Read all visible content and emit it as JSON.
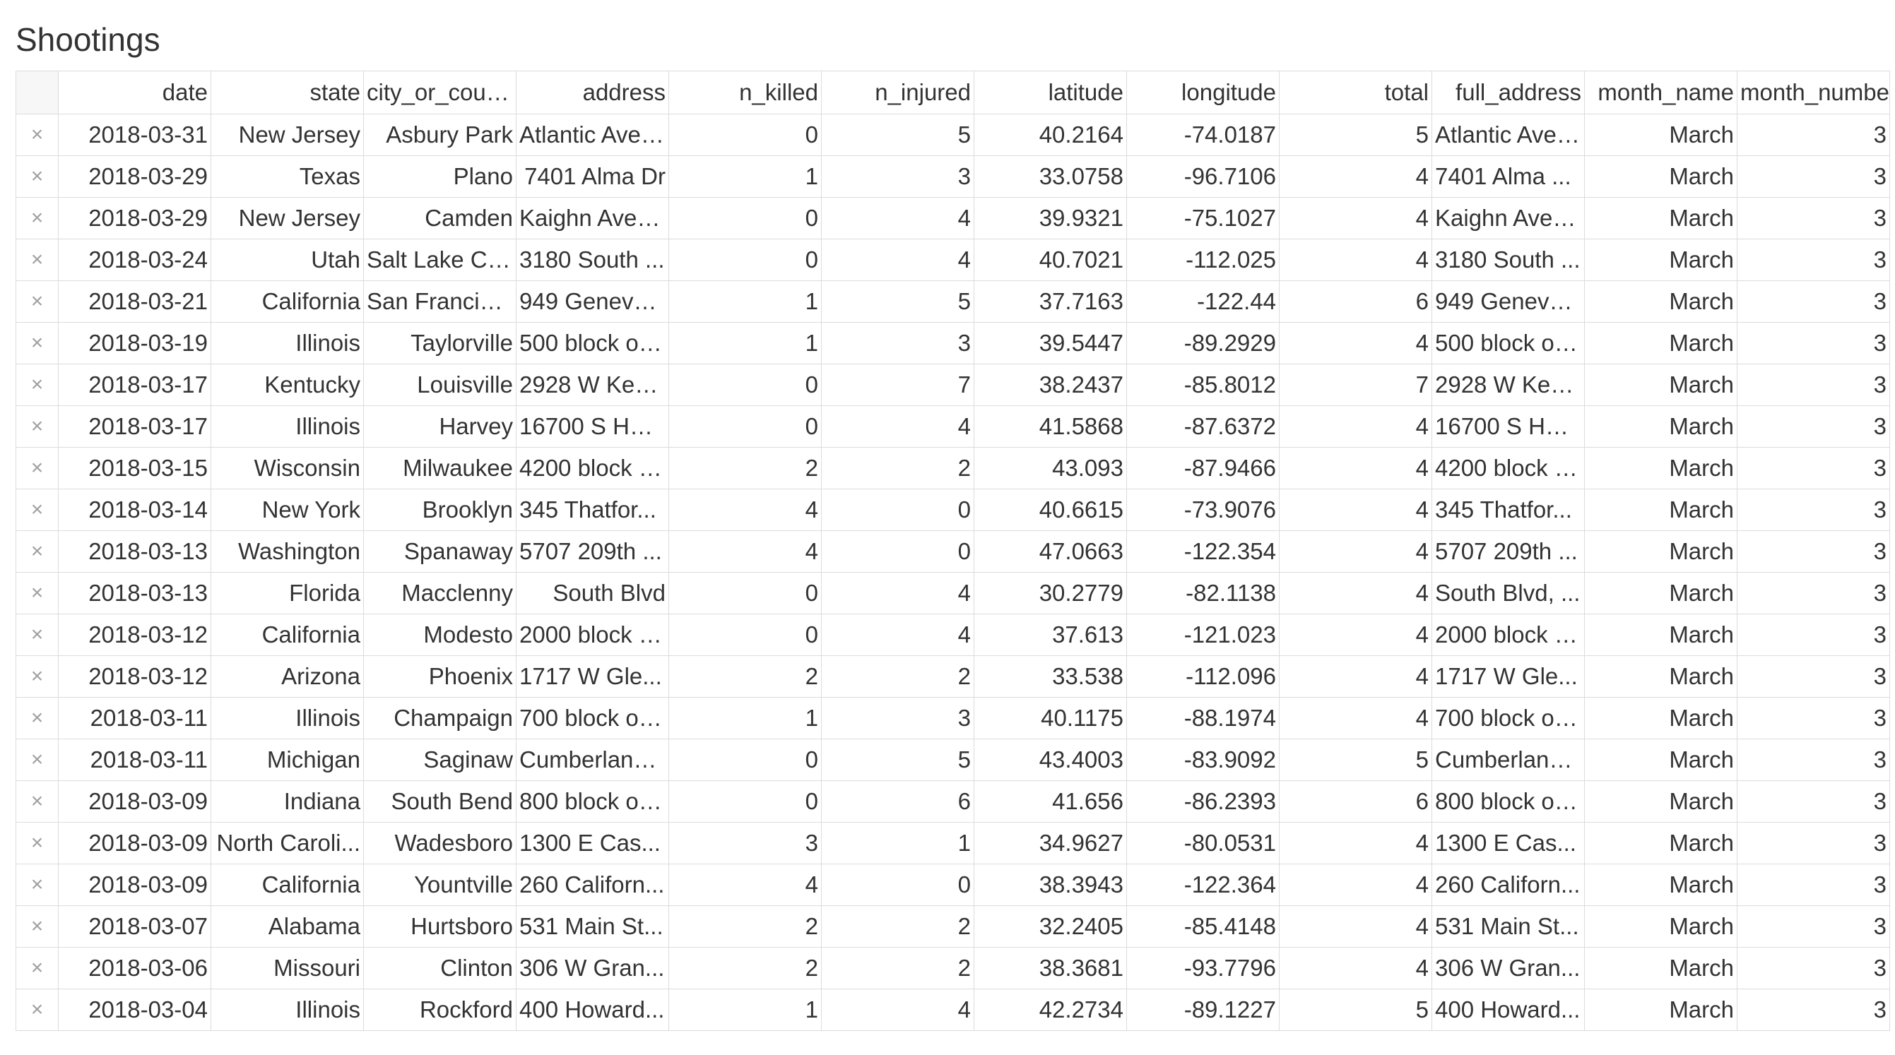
{
  "title": "Shootings",
  "delete_glyph": "×",
  "columns": [
    "date",
    "state",
    "city_or_county",
    "address",
    "n_killed",
    "n_injured",
    "latitude",
    "longitude",
    "total",
    "full_address",
    "month_name",
    "month_number"
  ],
  "rows": [
    [
      "2018-03-31",
      "New Jersey",
      "Asbury Park",
      "Atlantic Ave ...",
      "0",
      "5",
      "40.2164",
      "-74.0187",
      "5",
      "Atlantic Ave ...",
      "March",
      "3"
    ],
    [
      "2018-03-29",
      "Texas",
      "Plano",
      "7401 Alma Dr",
      "1",
      "3",
      "33.0758",
      "-96.7106",
      "4",
      "7401 Alma ...",
      "March",
      "3"
    ],
    [
      "2018-03-29",
      "New Jersey",
      "Camden",
      "Kaighn Ave a...",
      "0",
      "4",
      "39.9321",
      "-75.1027",
      "4",
      "Kaighn Ave a...",
      "March",
      "3"
    ],
    [
      "2018-03-24",
      "Utah",
      "Salt Lake Cit...",
      "3180 South ...",
      "0",
      "4",
      "40.7021",
      "-112.025",
      "4",
      "3180 South ...",
      "March",
      "3"
    ],
    [
      "2018-03-21",
      "California",
      "San Francisco",
      "949 Geneva ...",
      "1",
      "5",
      "37.7163",
      "-122.44",
      "6",
      "949 Geneva ...",
      "March",
      "3"
    ],
    [
      "2018-03-19",
      "Illinois",
      "Taylorville",
      "500 block of ...",
      "1",
      "3",
      "39.5447",
      "-89.2929",
      "4",
      "500 block of ...",
      "March",
      "3"
    ],
    [
      "2018-03-17",
      "Kentucky",
      "Louisville",
      "2928 W Ken...",
      "0",
      "7",
      "38.2437",
      "-85.8012",
      "7",
      "2928 W Ken...",
      "March",
      "3"
    ],
    [
      "2018-03-17",
      "Illinois",
      "Harvey",
      "16700 S Hal...",
      "0",
      "4",
      "41.5868",
      "-87.6372",
      "4",
      "16700 S Hal...",
      "March",
      "3"
    ],
    [
      "2018-03-15",
      "Wisconsin",
      "Milwaukee",
      "4200 block o...",
      "2",
      "2",
      "43.093",
      "-87.9466",
      "4",
      "4200 block o...",
      "March",
      "3"
    ],
    [
      "2018-03-14",
      "New York",
      "Brooklyn",
      "345 Thatfor...",
      "4",
      "0",
      "40.6615",
      "-73.9076",
      "4",
      "345 Thatfor...",
      "March",
      "3"
    ],
    [
      "2018-03-13",
      "Washington",
      "Spanaway",
      "5707 209th ...",
      "4",
      "0",
      "47.0663",
      "-122.354",
      "4",
      "5707 209th ...",
      "March",
      "3"
    ],
    [
      "2018-03-13",
      "Florida",
      "Macclenny",
      "South Blvd",
      "0",
      "4",
      "30.2779",
      "-82.1138",
      "4",
      "South Blvd, ...",
      "March",
      "3"
    ],
    [
      "2018-03-12",
      "California",
      "Modesto",
      "2000 block o...",
      "0",
      "4",
      "37.613",
      "-121.023",
      "4",
      "2000 block o...",
      "March",
      "3"
    ],
    [
      "2018-03-12",
      "Arizona",
      "Phoenix",
      "1717 W Gle...",
      "2",
      "2",
      "33.538",
      "-112.096",
      "4",
      "1717 W Gle...",
      "March",
      "3"
    ],
    [
      "2018-03-11",
      "Illinois",
      "Champaign",
      "700 block of ...",
      "1",
      "3",
      "40.1175",
      "-88.1974",
      "4",
      "700 block of ...",
      "March",
      "3"
    ],
    [
      "2018-03-11",
      "Michigan",
      "Saginaw",
      "Cumberland ...",
      "0",
      "5",
      "43.4003",
      "-83.9092",
      "5",
      "Cumberland ...",
      "March",
      "3"
    ],
    [
      "2018-03-09",
      "Indiana",
      "South Bend",
      "800 block of ...",
      "0",
      "6",
      "41.656",
      "-86.2393",
      "6",
      "800 block of ...",
      "March",
      "3"
    ],
    [
      "2018-03-09",
      "North Caroli...",
      "Wadesboro",
      "1300 E Cas...",
      "3",
      "1",
      "34.9627",
      "-80.0531",
      "4",
      "1300 E Cas...",
      "March",
      "3"
    ],
    [
      "2018-03-09",
      "California",
      "Yountville",
      "260 Californ...",
      "4",
      "0",
      "38.3943",
      "-122.364",
      "4",
      "260 Californ...",
      "March",
      "3"
    ],
    [
      "2018-03-07",
      "Alabama",
      "Hurtsboro",
      "531 Main St...",
      "2",
      "2",
      "32.2405",
      "-85.4148",
      "4",
      "531 Main St...",
      "March",
      "3"
    ],
    [
      "2018-03-06",
      "Missouri",
      "Clinton",
      "306 W Gran...",
      "2",
      "2",
      "38.3681",
      "-93.7796",
      "4",
      "306 W Gran...",
      "March",
      "3"
    ],
    [
      "2018-03-04",
      "Illinois",
      "Rockford",
      "400 Howard...",
      "1",
      "4",
      "42.2734",
      "-89.1227",
      "5",
      "400 Howard...",
      "March",
      "3"
    ]
  ]
}
